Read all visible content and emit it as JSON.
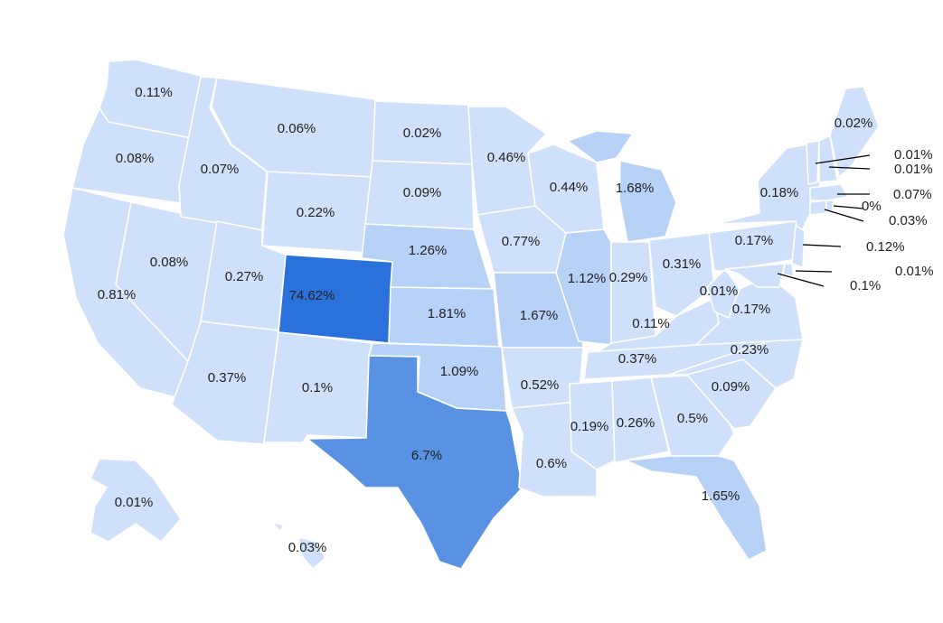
{
  "colors": {
    "base": "#cfe1fa",
    "light": "#b7d1f7",
    "mid": "#5a92e3",
    "dark": "#2b71db",
    "border": "#ffffff",
    "label": "#222222"
  },
  "states": [
    {
      "id": "WA",
      "label": "0.11%",
      "value": 0.11
    },
    {
      "id": "OR",
      "label": "0.08%",
      "value": 0.08
    },
    {
      "id": "CA",
      "label": "0.81%",
      "value": 0.81
    },
    {
      "id": "NV",
      "label": "0.08%",
      "value": 0.08
    },
    {
      "id": "ID",
      "label": "0.07%",
      "value": 0.07
    },
    {
      "id": "MT",
      "label": "0.06%",
      "value": 0.06
    },
    {
      "id": "WY",
      "label": "0.22%",
      "value": 0.22
    },
    {
      "id": "UT",
      "label": "0.27%",
      "value": 0.27
    },
    {
      "id": "AZ",
      "label": "0.37%",
      "value": 0.37
    },
    {
      "id": "CO",
      "label": "74.62%",
      "value": 74.62
    },
    {
      "id": "NM",
      "label": "0.1%",
      "value": 0.1
    },
    {
      "id": "ND",
      "label": "0.02%",
      "value": 0.02
    },
    {
      "id": "SD",
      "label": "0.09%",
      "value": 0.09
    },
    {
      "id": "NE",
      "label": "1.26%",
      "value": 1.26
    },
    {
      "id": "KS",
      "label": "1.81%",
      "value": 1.81
    },
    {
      "id": "OK",
      "label": "1.09%",
      "value": 1.09
    },
    {
      "id": "TX",
      "label": "6.7%",
      "value": 6.7
    },
    {
      "id": "MN",
      "label": "0.46%",
      "value": 0.46
    },
    {
      "id": "IA",
      "label": "0.77%",
      "value": 0.77
    },
    {
      "id": "MO",
      "label": "1.67%",
      "value": 1.67
    },
    {
      "id": "AR",
      "label": "0.52%",
      "value": 0.52
    },
    {
      "id": "LA",
      "label": "0.6%",
      "value": 0.6
    },
    {
      "id": "WI",
      "label": "0.44%",
      "value": 0.44
    },
    {
      "id": "IL",
      "label": "1.12%",
      "value": 1.12
    },
    {
      "id": "MI",
      "label": "1.68%",
      "value": 1.68
    },
    {
      "id": "IN",
      "label": "0.29%",
      "value": 0.29
    },
    {
      "id": "OH",
      "label": "0.31%",
      "value": 0.31
    },
    {
      "id": "KY",
      "label": "0.11%",
      "value": 0.11
    },
    {
      "id": "TN",
      "label": "0.37%",
      "value": 0.37
    },
    {
      "id": "MS",
      "label": "0.19%",
      "value": 0.19
    },
    {
      "id": "AL",
      "label": "0.26%",
      "value": 0.26
    },
    {
      "id": "GA",
      "label": "0.5%",
      "value": 0.5
    },
    {
      "id": "FL",
      "label": "1.65%",
      "value": 1.65
    },
    {
      "id": "SC",
      "label": "0.09%",
      "value": 0.09
    },
    {
      "id": "NC",
      "label": "0.23%",
      "value": 0.23
    },
    {
      "id": "VA",
      "label": "0.17%",
      "value": 0.17
    },
    {
      "id": "WV",
      "label": "0.01%",
      "value": 0.01
    },
    {
      "id": "PA",
      "label": "0.17%",
      "value": 0.17
    },
    {
      "id": "NY",
      "label": "0.18%",
      "value": 0.18
    },
    {
      "id": "NJ",
      "label": "0.12%",
      "value": 0.12
    },
    {
      "id": "DE",
      "label": "0.01%",
      "value": 0.01
    },
    {
      "id": "MD",
      "label": "0.1%",
      "value": 0.1
    },
    {
      "id": "CT",
      "label": "0.03%",
      "value": 0.03
    },
    {
      "id": "RI",
      "label": "0%",
      "value": 0
    },
    {
      "id": "MA",
      "label": "0.07%",
      "value": 0.07
    },
    {
      "id": "VT",
      "label": "0.01%",
      "value": 0.01
    },
    {
      "id": "NH",
      "label": "0.01%",
      "value": 0.01
    },
    {
      "id": "ME",
      "label": "0.02%",
      "value": 0.02
    },
    {
      "id": "AK",
      "label": "0.01%",
      "value": 0.01
    },
    {
      "id": "HI",
      "label": "0.03%",
      "value": 0.03
    }
  ]
}
